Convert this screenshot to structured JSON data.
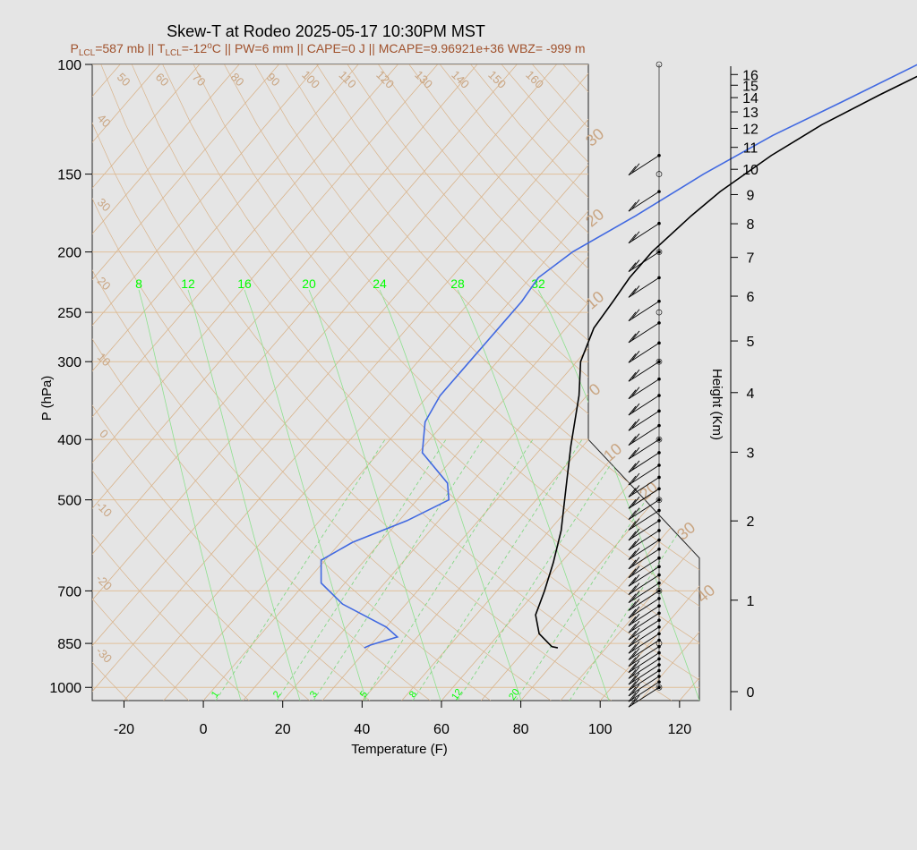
{
  "chart_data": {
    "type": "line",
    "title": "Skew-T at Rodeo 2025-05-17 10:30PM MST",
    "subtitle": {
      "lcl_p": "=587 mb || ",
      "lcl_t": "=-12",
      "rest": "C || PW=6 mm || CAPE=0 J || MCAPE=9.96921e+36 WBZ= -999 m"
    },
    "xlabel": "Temperature (F)",
    "ylabel": "P (hPa)",
    "y2label": "Height (Km)",
    "xlim": [
      -28,
      125
    ],
    "x_ticks": [
      -20,
      0,
      20,
      40,
      60,
      80,
      100,
      120
    ],
    "pressure_ticks": [
      100,
      150,
      200,
      250,
      300,
      400,
      500,
      700,
      850,
      1000
    ],
    "height_ticks": [
      0,
      1,
      2,
      3,
      4,
      5,
      6,
      7,
      8,
      9,
      10,
      11,
      12,
      13,
      14,
      15,
      16
    ],
    "isotherm_labels_top": [
      50,
      60,
      70,
      80,
      90,
      100,
      110,
      120,
      130,
      140,
      150,
      160
    ],
    "isotherm_labels_left": [
      40,
      30,
      20,
      10,
      0,
      -10,
      -20,
      -30
    ],
    "isotherm_labels_right": [
      30,
      20,
      10,
      0
    ],
    "isotherm_labels_bottom_right": [
      10,
      20,
      30,
      40
    ],
    "mixing_ratio_labels_top": [
      8,
      12,
      16,
      20,
      24,
      28,
      32
    ],
    "mixing_ratio_labels_bottom": [
      1,
      2,
      3,
      5,
      8,
      12,
      20
    ],
    "series": [
      {
        "name": "",
        "role": "temperature",
        "color": "#000000",
        "points": [
          [
            77.8,
            864
          ],
          [
            76,
            860
          ],
          [
            70,
            820
          ],
          [
            65,
            765
          ],
          [
            62,
            700
          ],
          [
            58,
            630
          ],
          [
            53,
            560
          ],
          [
            44,
            470
          ],
          [
            37,
            410
          ],
          [
            28,
            340
          ],
          [
            21,
            300
          ],
          [
            17,
            265
          ],
          [
            16,
            240
          ],
          [
            15,
            220
          ],
          [
            15,
            200
          ],
          [
            17,
            175
          ],
          [
            19,
            160
          ],
          [
            24,
            140
          ],
          [
            30,
            125
          ],
          [
            38,
            112
          ],
          [
            47,
            100
          ]
        ]
      },
      {
        "name": "",
        "role": "dewpoint",
        "color": "#4169e1",
        "points": [
          [
            29,
            864
          ],
          [
            30,
            855
          ],
          [
            35,
            830
          ],
          [
            30,
            800
          ],
          [
            14,
            735
          ],
          [
            4,
            680
          ],
          [
            -1,
            625
          ],
          [
            3,
            585
          ],
          [
            12,
            540
          ],
          [
            18,
            500
          ],
          [
            14,
            470
          ],
          [
            1,
            420
          ],
          [
            -5,
            375
          ],
          [
            -7,
            340
          ],
          [
            -7,
            300
          ],
          [
            -7,
            265
          ],
          [
            -7,
            240
          ],
          [
            -8,
            220
          ],
          [
            -5,
            200
          ],
          [
            3,
            175
          ],
          [
            11,
            150
          ],
          [
            20,
            130
          ],
          [
            30,
            115
          ],
          [
            41,
            100
          ]
        ]
      }
    ],
    "wind_levels": [
      1000,
      980,
      960,
      940,
      920,
      900,
      880,
      860,
      840,
      820,
      800,
      780,
      760,
      740,
      720,
      700,
      680,
      660,
      640,
      620,
      600,
      580,
      560,
      540,
      520,
      500,
      480,
      460,
      440,
      420,
      400,
      380,
      360,
      340,
      320,
      300,
      280,
      260,
      240,
      220,
      200,
      180,
      160,
      140
    ],
    "grid": true,
    "legend": "none"
  }
}
